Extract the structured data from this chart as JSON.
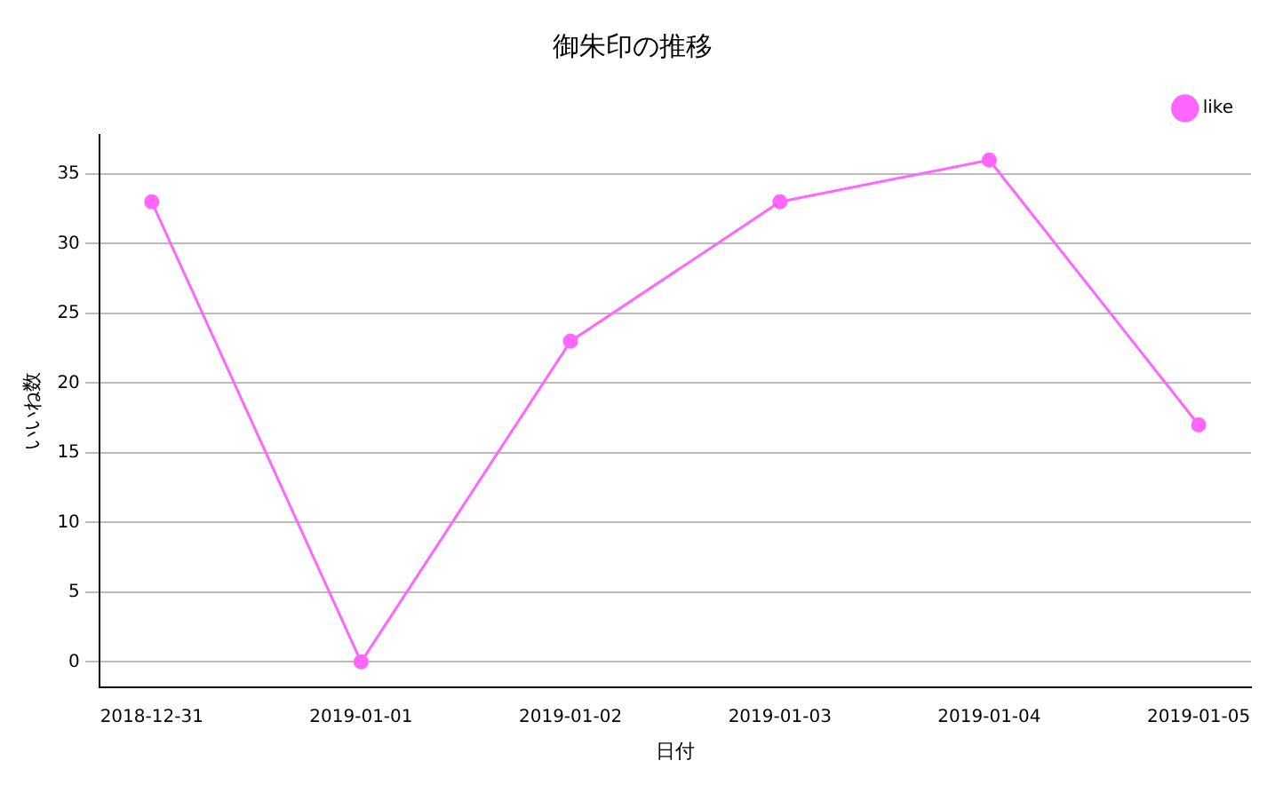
{
  "chart_data": {
    "type": "line",
    "title": "御朱印の推移",
    "xlabel": "日付",
    "ylabel": "いいね数",
    "x": [
      "2018-12-31",
      "2019-01-01",
      "2019-01-02",
      "2019-01-03",
      "2019-01-04",
      "2019-01-05"
    ],
    "series": [
      {
        "name": "like",
        "color": "#ff66ff",
        "values": [
          33,
          0,
          23,
          33,
          36,
          17
        ]
      }
    ],
    "xlim": [
      "2018-12-30T18:00",
      "2019-01-05T06:00"
    ],
    "xticks": [
      "2018-12-31",
      "2019-01-01",
      "2019-01-02",
      "2019-01-03",
      "2019-01-04",
      "2019-01-05"
    ],
    "ylim": [
      -1.8,
      37.8
    ],
    "yticks": [
      0,
      5,
      10,
      15,
      20,
      25,
      30,
      35
    ],
    "grid": "y",
    "legend": "top right",
    "marker": "circle",
    "line_style": "solid"
  }
}
